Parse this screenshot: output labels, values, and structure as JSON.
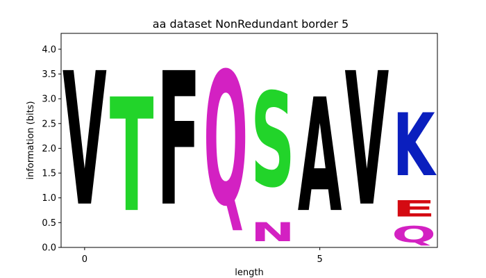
{
  "chart_data": {
    "type": "sequence-logo",
    "title": "aa dataset NonRedundant border 5",
    "xlabel": "length",
    "ylabel": "information (bits)",
    "xlim": [
      -0.5,
      7.5
    ],
    "ylim": [
      0,
      4.32
    ],
    "xticks": [
      0,
      5
    ],
    "yticks": [
      0.0,
      0.5,
      1.0,
      1.5,
      2.0,
      2.5,
      3.0,
      3.5,
      4.0
    ],
    "ytick_labels": [
      "0.0",
      "0.5",
      "1.0",
      "1.5",
      "2.0",
      "2.5",
      "3.0",
      "3.5",
      "4.0"
    ],
    "colors": {
      "V": "#000000",
      "T": "#22d42a",
      "F": "#000000",
      "Q": "#d321c2",
      "N": "#d321c2",
      "S": "#22d42a",
      "A": "#000000",
      "K": "#0a1fbe",
      "E": "#d40a12"
    },
    "positions": [
      {
        "x": 0,
        "letters": [
          {
            "letter": "V",
            "bottom": 0.0,
            "height": 4.32
          }
        ]
      },
      {
        "x": 1,
        "letters": [
          {
            "letter": "T",
            "bottom": 0.0,
            "height": 3.68
          }
        ]
      },
      {
        "x": 2,
        "letters": [
          {
            "letter": "F",
            "bottom": 0.0,
            "height": 4.32
          }
        ]
      },
      {
        "x": 3,
        "letters": [
          {
            "letter": "Q",
            "bottom": 0.0,
            "height": 4.32
          }
        ]
      },
      {
        "x": 4,
        "letters": [
          {
            "letter": "N",
            "bottom": 0.0,
            "height": 0.62
          },
          {
            "letter": "S",
            "bottom": 0.62,
            "height": 3.06
          }
        ]
      },
      {
        "x": 5,
        "letters": [
          {
            "letter": "A",
            "bottom": 0.0,
            "height": 3.68
          }
        ]
      },
      {
        "x": 6,
        "letters": [
          {
            "letter": "V",
            "bottom": 0.0,
            "height": 4.32
          }
        ]
      },
      {
        "x": 7,
        "letters": [
          {
            "letter": "Q",
            "bottom": 0.0,
            "height": 0.52
          },
          {
            "letter": "E",
            "bottom": 0.52,
            "height": 0.52
          },
          {
            "letter": "K",
            "bottom": 1.04,
            "height": 2.04
          }
        ]
      }
    ]
  }
}
